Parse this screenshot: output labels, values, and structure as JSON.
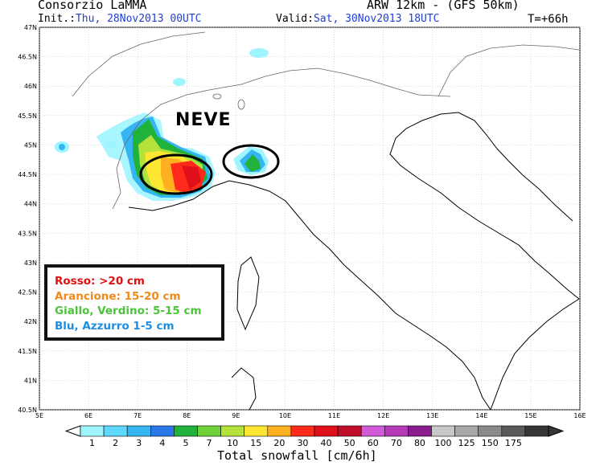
{
  "header": {
    "org": "Consorzio LaMMA",
    "model": "ARW 12km - (GFS 50km)",
    "init_label": "Init.:",
    "init_value": "Thu, 28Nov2013 00UTC",
    "valid_label": "Valid:",
    "valid_value": "Sat, 30Nov2013 18UTC",
    "forecast_hour": "T=+66h"
  },
  "annotation": {
    "label": "NEVE"
  },
  "legend": {
    "items": [
      {
        "text": "Rosso: >20 cm",
        "color": "#e01010"
      },
      {
        "text": "Arancione: 15-20 cm",
        "color": "#f08a1c"
      },
      {
        "text": "Giallo, Verdino: 5-15 cm",
        "color": "#4cc43a"
      },
      {
        "text": "Blu, Azzurro 1-5 cm",
        "color": "#1e8fe0"
      }
    ]
  },
  "map": {
    "lon_ticks": [
      "5E",
      "6E",
      "7E",
      "8E",
      "9E",
      "10E",
      "11E",
      "12E",
      "13E",
      "14E",
      "15E",
      "16E"
    ],
    "lat_ticks": [
      "47N",
      "46.5N",
      "46N",
      "45.5N",
      "45N",
      "44.5N",
      "44N",
      "43.5N",
      "43N",
      "42.5N",
      "42N",
      "41.5N",
      "41N",
      "40.5N"
    ],
    "lon_range": [
      5,
      16
    ],
    "lat_range": [
      40.5,
      47
    ]
  },
  "colorbar": {
    "title": "Total snowfall [cm/6h]",
    "labels": [
      "1",
      "2",
      "3",
      "4",
      "5",
      "7",
      "10",
      "15",
      "20",
      "30",
      "40",
      "50",
      "60",
      "70",
      "80",
      "100",
      "125",
      "150",
      "175"
    ],
    "colors": [
      "#9ff5ff",
      "#5fd8ff",
      "#35b6f2",
      "#2a78e8",
      "#21b23c",
      "#6fd23a",
      "#b4e23a",
      "#ffe633",
      "#ffb020",
      "#ff2a1a",
      "#e0101a",
      "#c00e2a",
      "#d05ad8",
      "#b43ab8",
      "#8a1e8e",
      "#c8c8c8",
      "#a8a8a8",
      "#8a8a8a",
      "#5a5a5a",
      "#363636"
    ]
  }
}
